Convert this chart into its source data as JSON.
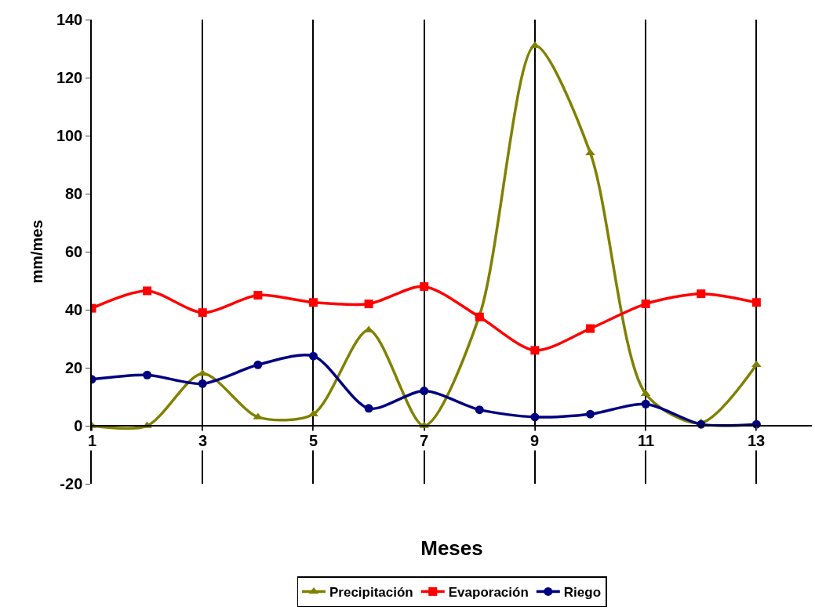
{
  "chart_data": {
    "type": "line",
    "xlabel": "Meses",
    "ylabel": "mm/mes",
    "x": [
      1,
      2,
      3,
      4,
      5,
      6,
      7,
      8,
      9,
      10,
      11,
      12,
      13
    ],
    "xlim": [
      1,
      14
    ],
    "xticks": [
      1,
      3,
      5,
      7,
      9,
      11,
      13
    ],
    "ylim": [
      -20,
      140
    ],
    "yticks": [
      -20,
      0,
      20,
      40,
      60,
      80,
      100,
      120,
      140
    ],
    "grid": "x",
    "legend": "bottom",
    "line_style": "solid",
    "series": [
      {
        "name": "Precipitación",
        "color": "#808000",
        "marker": "triangle",
        "values": [
          0,
          0,
          18,
          3,
          4,
          33,
          0,
          38,
          131,
          94,
          11,
          1,
          21
        ]
      },
      {
        "name": "Evaporación",
        "color": "#ff0000",
        "marker": "square",
        "values": [
          40.5,
          46.5,
          39,
          45,
          42.5,
          42,
          48,
          37.5,
          26,
          33.5,
          42,
          45.5,
          42.5
        ]
      },
      {
        "name": "Riego",
        "color": "#000080",
        "marker": "circle",
        "values": [
          16,
          17.5,
          14.5,
          21,
          24,
          6,
          12,
          5.5,
          3,
          4,
          7.5,
          0.5,
          0.5
        ]
      }
    ]
  }
}
